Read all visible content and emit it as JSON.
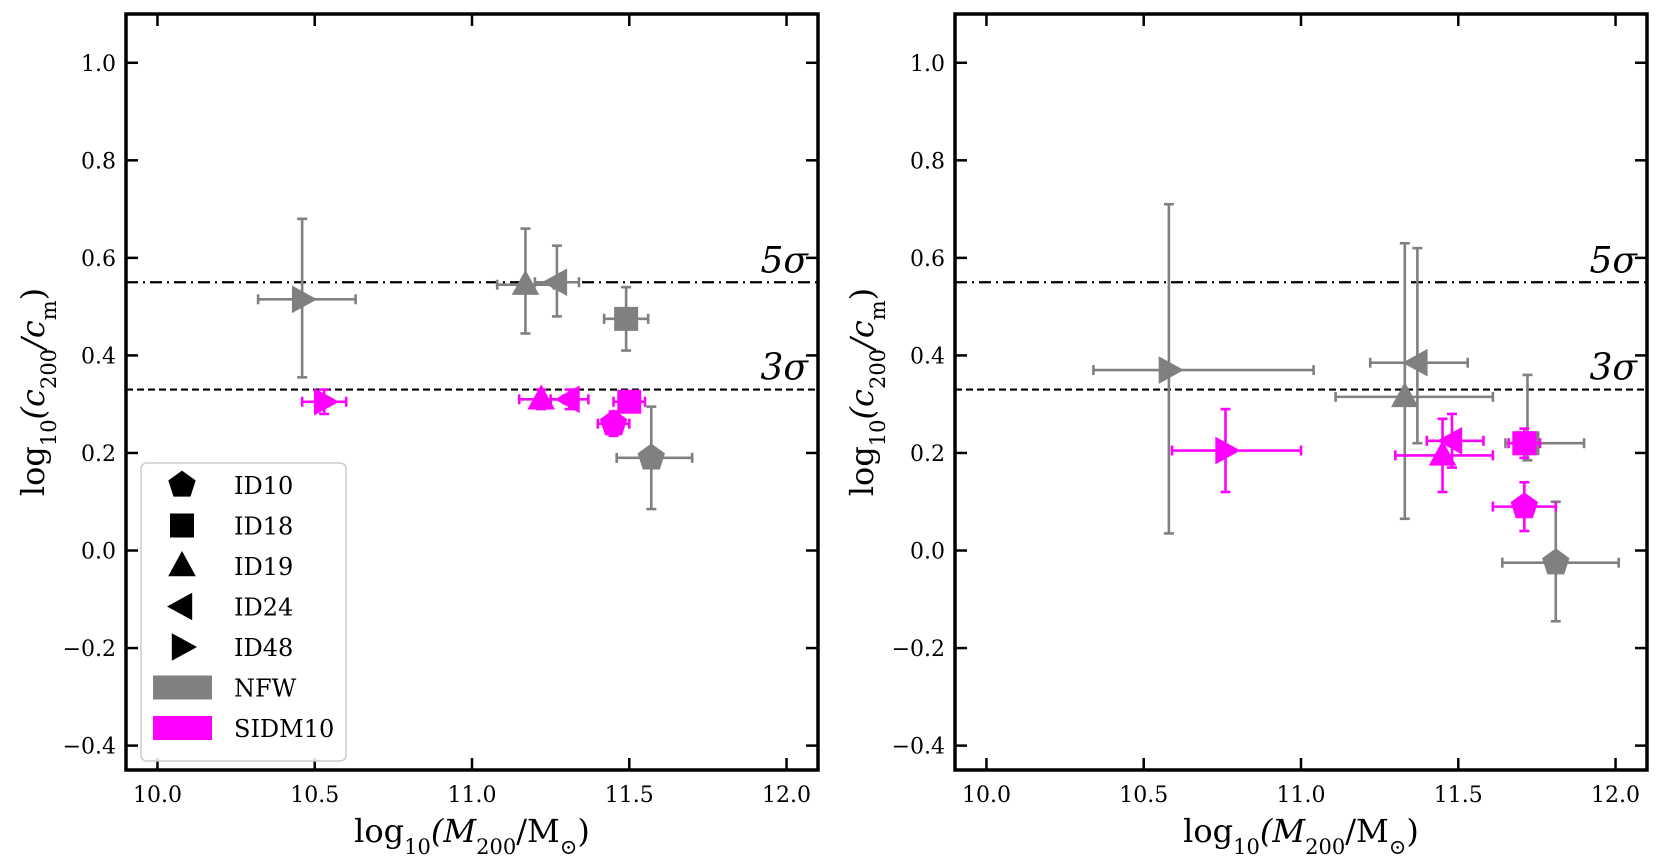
{
  "chart_data": [
    {
      "type": "scatter",
      "title": "",
      "xlabel_main": "log",
      "xlabel_sub": "10",
      "xlabel_rest": "(M",
      "xlabel_rest_sub": "200",
      "xlabel_end": "/M",
      "xlabel_end_sub": "⊙",
      "xlabel_close": ")",
      "ylabel_main": "log",
      "ylabel_sub": "10",
      "ylabel_rest": "(c",
      "ylabel_rest_sub": "200",
      "ylabel_end": "/c",
      "ylabel_end_sub": "m",
      "ylabel_close": ")",
      "xlim": [
        9.9,
        12.1
      ],
      "ylim": [
        -0.45,
        1.1
      ],
      "xticks": [
        10.0,
        10.5,
        11.0,
        11.5,
        12.0
      ],
      "xtick_labels": [
        "10.0",
        "10.5",
        "11.0",
        "11.5",
        "12.0"
      ],
      "yticks": [
        1.0,
        0.8,
        0.6,
        0.4,
        0.2,
        0.0,
        -0.2,
        -0.4
      ],
      "ytick_labels": [
        "1.0",
        "0.8",
        "0.6",
        "0.4",
        "0.2",
        "0.0",
        "−0.2",
        "−0.4"
      ],
      "hlines": [
        {
          "y": 0.55,
          "style": "dashdot",
          "label": "5σ"
        },
        {
          "y": 0.33,
          "style": "dashed",
          "label": "3σ"
        }
      ],
      "series": [
        {
          "name": "NFW",
          "color": "#808080",
          "points": [
            {
              "id": "ID10",
              "marker": "pentagon",
              "x": 11.57,
              "y": 0.19,
              "xerr": [
                0.11,
                0.13
              ],
              "yerr": [
                0.105,
                0.105
              ]
            },
            {
              "id": "ID18",
              "marker": "square",
              "x": 11.49,
              "y": 0.475,
              "xerr": [
                0.07,
                0.07
              ],
              "yerr": [
                0.065,
                0.065
              ]
            },
            {
              "id": "ID19",
              "marker": "triangle-up",
              "x": 11.17,
              "y": 0.545,
              "xerr": [
                0.09,
                0.09
              ],
              "yerr": [
                0.1,
                0.115
              ]
            },
            {
              "id": "ID24",
              "marker": "triangle-left",
              "x": 11.27,
              "y": 0.55,
              "xerr": [
                0.07,
                0.07
              ],
              "yerr": [
                0.07,
                0.075
              ]
            },
            {
              "id": "ID48",
              "marker": "triangle-right",
              "x": 10.46,
              "y": 0.515,
              "xerr": [
                0.14,
                0.17
              ],
              "yerr": [
                0.16,
                0.165
              ]
            }
          ]
        },
        {
          "name": "SIDM10",
          "color": "#ff00ff",
          "points": [
            {
              "id": "ID10",
              "marker": "pentagon",
              "x": 11.45,
              "y": 0.26,
              "xerr": [
                0.05,
                0.05
              ],
              "yerr": [
                0.025,
                0.025
              ]
            },
            {
              "id": "ID18",
              "marker": "square",
              "x": 11.5,
              "y": 0.305,
              "xerr": [
                0.05,
                0.05
              ],
              "yerr": [
                0.02,
                0.02
              ]
            },
            {
              "id": "ID19",
              "marker": "triangle-up",
              "x": 11.22,
              "y": 0.31,
              "xerr": [
                0.07,
                0.07
              ],
              "yerr": [
                0.02,
                0.02
              ]
            },
            {
              "id": "ID24",
              "marker": "triangle-left",
              "x": 11.31,
              "y": 0.31,
              "xerr": [
                0.06,
                0.06
              ],
              "yerr": [
                0.02,
                0.02
              ]
            },
            {
              "id": "ID48",
              "marker": "triangle-right",
              "x": 10.53,
              "y": 0.305,
              "xerr": [
                0.07,
                0.07
              ],
              "yerr": [
                0.025,
                0.025
              ]
            }
          ]
        }
      ],
      "legend": {
        "placement": "lower-left",
        "marker_entries": [
          {
            "marker": "pentagon",
            "label": "ID10"
          },
          {
            "marker": "square",
            "label": "ID18"
          },
          {
            "marker": "triangle-up",
            "label": "ID19"
          },
          {
            "marker": "triangle-left",
            "label": "ID24"
          },
          {
            "marker": "triangle-right",
            "label": "ID48"
          }
        ],
        "color_entries": [
          {
            "color": "#808080",
            "label": "NFW"
          },
          {
            "color": "#ff00ff",
            "label": "SIDM10"
          }
        ]
      }
    },
    {
      "type": "scatter",
      "title": "",
      "xlabel_main": "log",
      "xlabel_sub": "10",
      "xlabel_rest": "(M",
      "xlabel_rest_sub": "200",
      "xlabel_end": "/M",
      "xlabel_end_sub": "⊙",
      "xlabel_close": ")",
      "ylabel_main": "log",
      "ylabel_sub": "10",
      "ylabel_rest": "(c",
      "ylabel_rest_sub": "200",
      "ylabel_end": "/c",
      "ylabel_end_sub": "m",
      "ylabel_close": ")",
      "xlim": [
        9.9,
        12.1
      ],
      "ylim": [
        -0.45,
        1.1
      ],
      "xticks": [
        10.0,
        10.5,
        11.0,
        11.5,
        12.0
      ],
      "xtick_labels": [
        "10.0",
        "10.5",
        "11.0",
        "11.5",
        "12.0"
      ],
      "yticks": [
        1.0,
        0.8,
        0.6,
        0.4,
        0.2,
        0.0,
        -0.2,
        -0.4
      ],
      "ytick_labels": [
        "1.0",
        "0.8",
        "0.6",
        "0.4",
        "0.2",
        "0.0",
        "−0.2",
        "−0.4"
      ],
      "hlines": [
        {
          "y": 0.55,
          "style": "dashdot",
          "label": "5σ"
        },
        {
          "y": 0.33,
          "style": "dashed",
          "label": "3σ"
        }
      ],
      "series": [
        {
          "name": "NFW",
          "color": "#808080",
          "points": [
            {
              "id": "ID10",
              "marker": "pentagon",
              "x": 11.81,
              "y": -0.025,
              "xerr": [
                0.17,
                0.2
              ],
              "yerr": [
                0.12,
                0.125
              ]
            },
            {
              "id": "ID18",
              "marker": "square",
              "x": 11.72,
              "y": 0.22,
              "xerr": [
                0.07,
                0.18
              ],
              "yerr": [
                0.035,
                0.14
              ]
            },
            {
              "id": "ID19",
              "marker": "triangle-up",
              "x": 11.33,
              "y": 0.315,
              "xerr": [
                0.22,
                0.28
              ],
              "yerr": [
                0.25,
                0.315
              ]
            },
            {
              "id": "ID24",
              "marker": "triangle-left",
              "x": 11.37,
              "y": 0.385,
              "xerr": [
                0.15,
                0.16
              ],
              "yerr": [
                0.165,
                0.235
              ]
            },
            {
              "id": "ID48",
              "marker": "triangle-right",
              "x": 10.58,
              "y": 0.37,
              "xerr": [
                0.24,
                0.46
              ],
              "yerr": [
                0.335,
                0.34
              ]
            }
          ]
        },
        {
          "name": "SIDM10",
          "color": "#ff00ff",
          "points": [
            {
              "id": "ID10",
              "marker": "pentagon",
              "x": 11.71,
              "y": 0.09,
              "xerr": [
                0.1,
                0.1
              ],
              "yerr": [
                0.05,
                0.05
              ]
            },
            {
              "id": "ID18",
              "marker": "square",
              "x": 11.71,
              "y": 0.22,
              "xerr": [
                0.05,
                0.05
              ],
              "yerr": [
                0.03,
                0.03
              ]
            },
            {
              "id": "ID19",
              "marker": "triangle-up",
              "x": 11.45,
              "y": 0.195,
              "xerr": [
                0.15,
                0.16
              ],
              "yerr": [
                0.075,
                0.075
              ]
            },
            {
              "id": "ID24",
              "marker": "triangle-left",
              "x": 11.48,
              "y": 0.225,
              "xerr": [
                0.08,
                0.1
              ],
              "yerr": [
                0.055,
                0.055
              ]
            },
            {
              "id": "ID48",
              "marker": "triangle-right",
              "x": 10.76,
              "y": 0.205,
              "xerr": [
                0.17,
                0.24
              ],
              "yerr": [
                0.085,
                0.085
              ]
            }
          ]
        }
      ]
    }
  ]
}
